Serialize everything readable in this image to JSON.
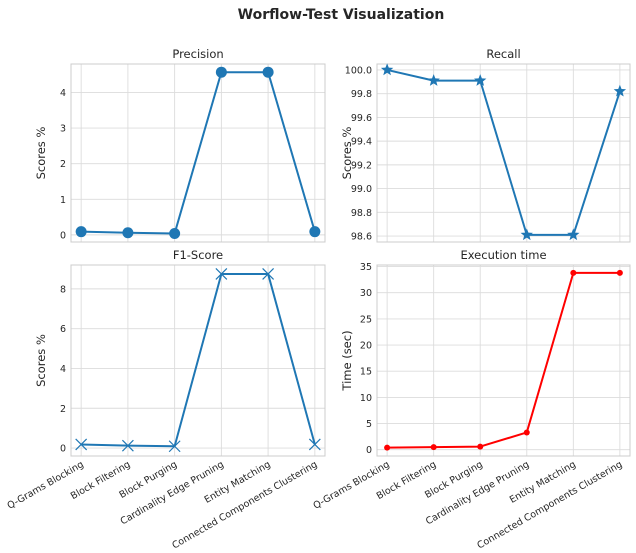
{
  "figure": {
    "title": "Worflow-Test Visualization"
  },
  "chart_data": [
    {
      "type": "line",
      "title": "Precision",
      "ylabel": "Scores %",
      "xlabel": "",
      "categories": [
        "Q-Grams Blocking",
        "Block Filtering",
        "Block Purging",
        "Cardinality Edge Pruning",
        "Entity Matching",
        "Connected Components Clustering"
      ],
      "values": [
        0.09,
        0.06,
        0.04,
        4.57,
        4.57,
        0.09
      ],
      "ylim": [
        -0.2,
        4.8
      ],
      "yticks": [
        0,
        1,
        2,
        3,
        4
      ],
      "ytick_labels": [
        "0",
        "1",
        "2",
        "3",
        "4"
      ],
      "marker": "circle",
      "color": "#1f77b4",
      "grid": true,
      "show_xticklabels": false
    },
    {
      "type": "line",
      "title": "Recall",
      "ylabel": "Scores %",
      "xlabel": "",
      "categories": [
        "Q-Grams Blocking",
        "Block Filtering",
        "Block Purging",
        "Cardinality Edge Pruning",
        "Entity Matching",
        "Connected Components Clustering"
      ],
      "values": [
        100.0,
        99.91,
        99.91,
        98.61,
        98.61,
        99.82
      ],
      "ylim": [
        98.55,
        100.05
      ],
      "yticks": [
        98.6,
        98.8,
        99.0,
        99.2,
        99.4,
        99.6,
        99.8,
        100.0
      ],
      "ytick_labels": [
        "98.6",
        "98.8",
        "99.0",
        "99.2",
        "99.4",
        "99.6",
        "99.8",
        "100.0"
      ],
      "marker": "star",
      "color": "#1f77b4",
      "grid": true,
      "show_xticklabels": false
    },
    {
      "type": "line",
      "title": "F1-Score",
      "ylabel": "Scores %",
      "xlabel": "",
      "categories": [
        "Q-Grams Blocking",
        "Block Filtering",
        "Block Purging",
        "Cardinality Edge Pruning",
        "Entity Matching",
        "Connected Components Clustering"
      ],
      "values": [
        0.18,
        0.12,
        0.09,
        8.75,
        8.75,
        0.18
      ],
      "ylim": [
        -0.4,
        9.2
      ],
      "yticks": [
        0,
        2,
        4,
        6,
        8
      ],
      "ytick_labels": [
        "0",
        "2",
        "4",
        "6",
        "8"
      ],
      "marker": "x",
      "color": "#1f77b4",
      "grid": true,
      "show_xticklabels": true
    },
    {
      "type": "line",
      "title": "Execution time",
      "ylabel": "Time (sec)",
      "xlabel": "",
      "categories": [
        "Q-Grams Blocking",
        "Block Filtering",
        "Block Purging",
        "Cardinality Edge Pruning",
        "Entity Matching",
        "Connected Components Clustering"
      ],
      "values": [
        0.4,
        0.5,
        0.6,
        3.3,
        33.8,
        33.8
      ],
      "ylim": [
        -1.2,
        35.3
      ],
      "yticks": [
        0,
        5,
        10,
        15,
        20,
        25,
        30,
        35
      ],
      "ytick_labels": [
        "0",
        "5",
        "10",
        "15",
        "20",
        "25",
        "30",
        "35"
      ],
      "marker": "dot",
      "color": "#ff0000",
      "grid": true,
      "show_xticklabels": true
    }
  ]
}
